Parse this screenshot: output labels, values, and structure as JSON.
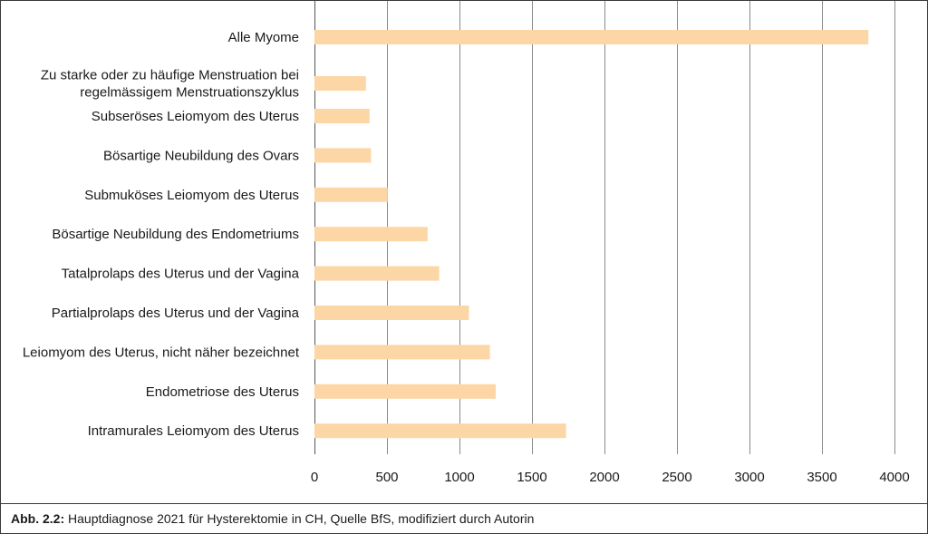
{
  "chart_data": {
    "type": "bar",
    "orientation": "horizontal",
    "categories": [
      "Alle Myome",
      "Zu starke oder zu häufige Menstruation bei regelmässigem Menstruationszyklus",
      "Subseröses Leiomyom des Uterus",
      "Bösartige Neubildung des Ovars",
      "Submuköses Leiomyom des Uterus",
      "Bösartige Neubildung des Endometriums",
      "Tatalprolaps des Uterus und der Vagina",
      "Partialprolaps des Uterus und der Vagina",
      "Leiomyom des Uterus, nicht näher bezeichnet",
      "Endometriose des Uterus",
      "Intramurales Leiomyom des Uterus"
    ],
    "category_lines": [
      [
        "Alle Myome"
      ],
      [
        "Zu starke oder zu häufige Menstruation bei",
        "regelmässigem Menstruationszyklus"
      ],
      [
        "Subseröses Leiomyom des Uterus"
      ],
      [
        "Bösartige Neubildung des Ovars"
      ],
      [
        "Submuköses Leiomyom des Uterus"
      ],
      [
        "Bösartige Neubildung des Endometriums"
      ],
      [
        "Tatalprolaps des Uterus und der Vagina"
      ],
      [
        "Partialprolaps des Uterus und der Vagina"
      ],
      [
        "Leiomyom des Uterus, nicht näher bezeichnet"
      ],
      [
        "Endometriose des Uterus"
      ],
      [
        "Intramurales Leiomyom des Uterus"
      ]
    ],
    "values": [
      3820,
      355,
      380,
      390,
      505,
      780,
      860,
      1065,
      1210,
      1250,
      1735
    ],
    "xlim": [
      0,
      4000
    ],
    "xticks": [
      0,
      500,
      1000,
      1500,
      2000,
      2500,
      3000,
      3500,
      4000
    ],
    "grid": true,
    "title": "",
    "xlabel": "",
    "ylabel": "",
    "colors": {
      "bar": "#fdd6a6",
      "grid": "#8a8a8a",
      "frame": "#3a3a3a"
    }
  },
  "caption": {
    "label": "Abb. 2.2:",
    "text": " Hauptdiagnose 2021 für Hysterektomie in CH, Quelle BfS, modifiziert durch Autorin"
  }
}
